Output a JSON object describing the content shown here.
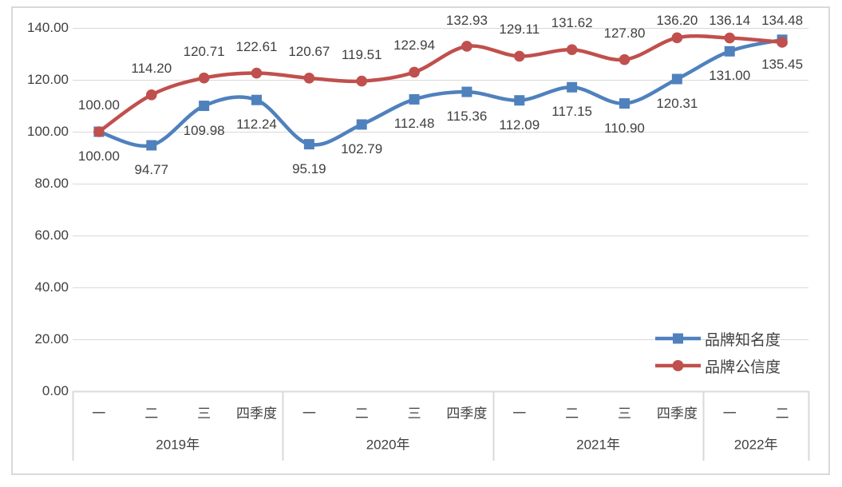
{
  "chart_data": {
    "type": "line",
    "title": "",
    "smooth": true,
    "grid": true,
    "legend_position": "inside-bottom-right",
    "categories": [
      "一",
      "二",
      "三",
      "四季度",
      "一",
      "二",
      "三",
      "四季度",
      "一",
      "二",
      "三",
      "四季度",
      "一",
      "二"
    ],
    "year_groups": [
      {
        "label": "2019年",
        "span": 4
      },
      {
        "label": "2020年",
        "span": 4
      },
      {
        "label": "2021年",
        "span": 4
      },
      {
        "label": "2022年",
        "span": 2
      }
    ],
    "series": [
      {
        "name": "品牌知名度",
        "color": "#4F81BD",
        "marker": "square",
        "label_position": "below",
        "values": [
          100.0,
          94.77,
          109.98,
          112.24,
          95.19,
          102.79,
          112.48,
          115.36,
          112.09,
          117.15,
          110.9,
          120.31,
          131.0,
          135.45
        ]
      },
      {
        "name": "品牌公信度",
        "color": "#C0504D",
        "marker": "circle",
        "label_position": "above",
        "values": [
          100.0,
          114.2,
          120.71,
          122.61,
          120.67,
          119.51,
          122.94,
          132.93,
          129.11,
          131.62,
          127.8,
          136.2,
          136.14,
          134.48
        ]
      }
    ],
    "y_axis": {
      "min": 0,
      "max": 140,
      "step": 20,
      "tick_labels": [
        "0.00",
        "20.00",
        "40.00",
        "60.00",
        "80.00",
        "100.00",
        "120.00",
        "140.00"
      ]
    },
    "colors": {
      "grid": "#D9D9D9",
      "axis": "#D9D9D9",
      "frame_border": "#D9D9D9",
      "text": "#404040",
      "background": "#FFFFFF"
    }
  }
}
